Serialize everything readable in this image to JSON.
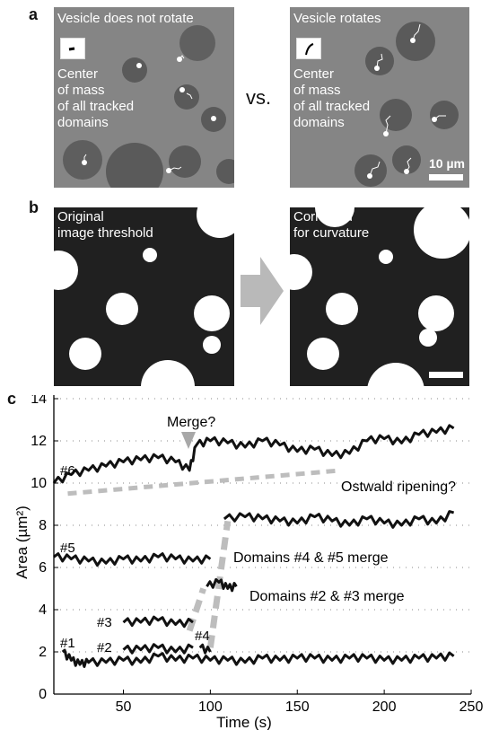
{
  "panel_a": {
    "label": "a",
    "left_title": "Vesicle does not rotate",
    "left_caption": [
      "Center",
      "of mass",
      "of all tracked",
      "domains"
    ],
    "vs": "vs.",
    "right_title": "Vesicle rotates",
    "right_caption": [
      "Center",
      "of mass",
      "of all tracked",
      "domains"
    ],
    "scalebar": "10 µm"
  },
  "panel_b": {
    "label": "b",
    "left_caption": [
      "Original",
      "image threshold"
    ],
    "right_caption": [
      "Corrected",
      "for curvature"
    ]
  },
  "panel_c": {
    "label": "c",
    "annotations": {
      "merge_q": "Merge?",
      "ostwald": "Ostwald ripening?",
      "merge45": "Domains #4 & #5 merge",
      "merge23": "Domains #2 & #3 merge"
    },
    "series_labels": [
      "#6",
      "#5",
      "#3",
      "#4",
      "#2",
      "#1"
    ]
  },
  "chart_data": {
    "type": "line",
    "xlabel": "Time (s)",
    "ylabel": "Area (µm²)",
    "xlim": [
      10,
      250
    ],
    "ylim": [
      0,
      14
    ],
    "xticks": [
      50,
      100,
      150,
      200,
      250
    ],
    "yticks": [
      0,
      2,
      4,
      6,
      8,
      10,
      12,
      14
    ],
    "grid": "dotted horizontal",
    "series": [
      {
        "name": "#6",
        "x": [
          10,
          20,
          30,
          40,
          50,
          60,
          70,
          80,
          88,
          92,
          100,
          110,
          120,
          130,
          140,
          150,
          160,
          170,
          180,
          190,
          200,
          210,
          220,
          230,
          240
        ],
        "y": [
          10.0,
          10.4,
          10.6,
          10.8,
          11.0,
          11.1,
          11.2,
          11.0,
          10.6,
          11.8,
          12.0,
          11.9,
          11.7,
          12.0,
          11.8,
          11.5,
          11.6,
          11.3,
          11.4,
          12.0,
          12.1,
          11.9,
          12.3,
          12.4,
          12.6
        ]
      },
      {
        "name": "#5",
        "x": [
          10,
          20,
          30,
          40,
          50,
          60,
          70,
          80,
          90,
          100
        ],
        "y": [
          6.5,
          6.4,
          6.3,
          6.2,
          6.4,
          6.3,
          6.5,
          6.4,
          6.3,
          6.4
        ]
      },
      {
        "name": "#4+#5",
        "x": [
          108,
          120,
          130,
          140,
          150,
          160,
          170,
          180,
          190,
          200,
          210,
          220,
          230,
          240
        ],
        "y": [
          8.3,
          8.4,
          8.3,
          8.2,
          8.1,
          8.4,
          8.2,
          8.0,
          8.3,
          8.1,
          8.0,
          8.3,
          8.1,
          8.6
        ]
      },
      {
        "name": "#3",
        "x": [
          50,
          60,
          70,
          80,
          90
        ],
        "y": [
          3.4,
          3.4,
          3.5,
          3.3,
          3.4
        ]
      },
      {
        "name": "#2+#3",
        "x": [
          98,
          105,
          110,
          115
        ],
        "y": [
          5.1,
          5.3,
          5.0,
          5.1
        ]
      },
      {
        "name": "#2",
        "x": [
          50,
          60,
          70,
          80,
          90
        ],
        "y": [
          2.1,
          2.1,
          2.2,
          2.0,
          2.2
        ]
      },
      {
        "name": "#4",
        "x": [
          94,
          100
        ],
        "y": [
          2.2,
          2.0
        ]
      },
      {
        "name": "#1",
        "x": [
          15,
          20,
          25,
          30,
          40,
          50,
          60,
          70,
          80,
          90,
          100,
          110,
          120,
          130,
          140,
          150,
          160,
          170,
          180,
          190,
          200,
          210,
          220,
          230,
          240
        ],
        "y": [
          2.0,
          1.6,
          1.4,
          1.5,
          1.5,
          1.6,
          1.5,
          1.8,
          1.6,
          1.7,
          1.6,
          1.6,
          1.5,
          1.7,
          1.6,
          1.7,
          1.7,
          1.6,
          1.7,
          1.7,
          1.6,
          1.6,
          1.7,
          1.7,
          1.8
        ]
      }
    ],
    "guides": [
      {
        "name": "ostwald",
        "x": [
          18,
          175
        ],
        "y": [
          9.5,
          10.6
        ]
      },
      {
        "name": "merge23",
        "x": [
          88,
          96
        ],
        "y": [
          3.0,
          5.0
        ]
      },
      {
        "name": "merge45",
        "x": [
          100,
          110
        ],
        "y": [
          2.2,
          8.2
        ]
      }
    ]
  }
}
